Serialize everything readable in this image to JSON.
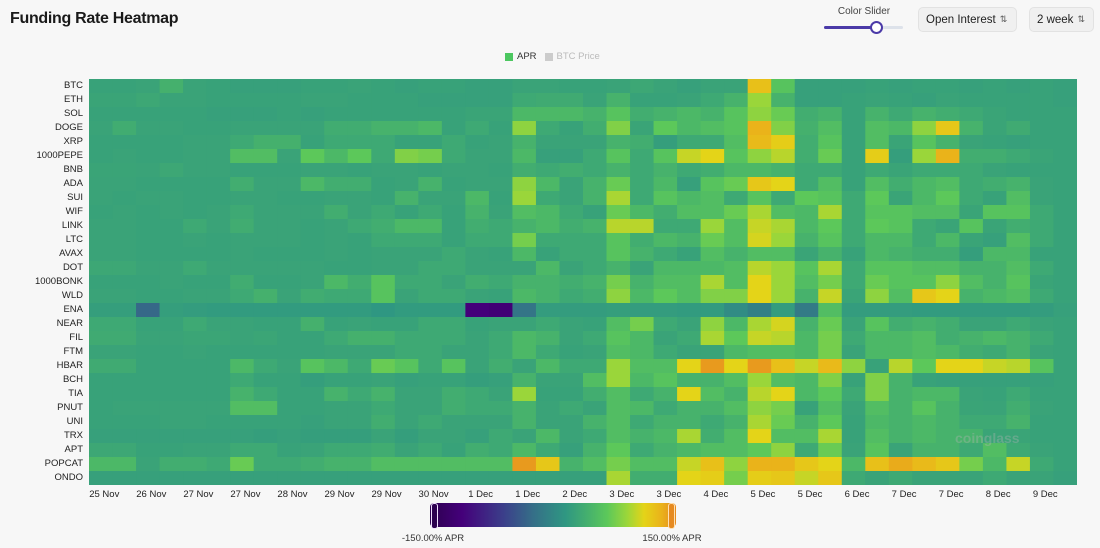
{
  "header": {
    "title": "Funding Rate Heatmap"
  },
  "controls": {
    "slider_label": "Color Slider",
    "slider_value": 0.66,
    "metric_select": "Open Interest",
    "range_select": "2 week"
  },
  "watermark": "coinglass",
  "colors": {
    "accent": "#4b3aa8",
    "apr_legend": "#4cc760",
    "btc_legend": "#cccccc"
  },
  "chart_data": {
    "type": "heatmap",
    "title": "Funding Rate Heatmap",
    "legend": [
      {
        "name": "APR",
        "active": true
      },
      {
        "name": "BTC Price",
        "active": false
      }
    ],
    "legend_placement": "top-center",
    "colorbar": {
      "min": -150,
      "max": 150,
      "min_label": "-150.00% APR",
      "max_label": "150.00% APR"
    },
    "x_tick_labels": [
      "25 Nov",
      "26 Nov",
      "27 Nov",
      "27 Nov",
      "28 Nov",
      "29 Nov",
      "29 Nov",
      "30 Nov",
      "1 Dec",
      "1 Dec",
      "2 Dec",
      "3 Dec",
      "3 Dec",
      "4 Dec",
      "5 Dec",
      "5 Dec",
      "6 Dec",
      "7 Dec",
      "7 Dec",
      "8 Dec",
      "9 Dec"
    ],
    "rows": [
      "BTC",
      "ETH",
      "SOL",
      "DOGE",
      "XRP",
      "1000PEPE",
      "BNB",
      "ADA",
      "SUI",
      "WIF",
      "LINK",
      "LTC",
      "AVAX",
      "DOT",
      "1000BONK",
      "WLD",
      "ENA",
      "NEAR",
      "FIL",
      "FTM",
      "HBAR",
      "BCH",
      "TIA",
      "PNUT",
      "UNI",
      "TRX",
      "APT",
      "POPCAT",
      "ONDO"
    ],
    "unit": "APR %",
    "values": [
      [
        12,
        12,
        14,
        28,
        14,
        12,
        10,
        10,
        10,
        12,
        12,
        14,
        12,
        10,
        12,
        12,
        10,
        10,
        14,
        14,
        12,
        12,
        14,
        18,
        14,
        10,
        14,
        14,
        115,
        45,
        10,
        10,
        10,
        12,
        10,
        12,
        12,
        10,
        12,
        10,
        12,
        10
      ],
      [
        15,
        15,
        18,
        14,
        14,
        12,
        12,
        12,
        12,
        14,
        14,
        12,
        12,
        12,
        10,
        10,
        10,
        10,
        20,
        22,
        22,
        14,
        30,
        12,
        12,
        14,
        20,
        30,
        75,
        30,
        10,
        10,
        12,
        14,
        12,
        10,
        14,
        12,
        12,
        12,
        12,
        10
      ],
      [
        12,
        12,
        12,
        12,
        12,
        10,
        10,
        10,
        12,
        10,
        12,
        12,
        12,
        12,
        12,
        12,
        15,
        15,
        35,
        35,
        35,
        30,
        45,
        25,
        30,
        35,
        30,
        45,
        70,
        55,
        25,
        30,
        12,
        30,
        20,
        30,
        25,
        20,
        15,
        12,
        12,
        12
      ],
      [
        14,
        24,
        14,
        14,
        12,
        12,
        14,
        14,
        14,
        14,
        24,
        24,
        30,
        30,
        35,
        12,
        20,
        12,
        70,
        20,
        12,
        25,
        65,
        15,
        50,
        35,
        40,
        45,
        125,
        65,
        28,
        40,
        12,
        40,
        35,
        70,
        110,
        30,
        15,
        22,
        12,
        12
      ],
      [
        12,
        12,
        12,
        12,
        14,
        14,
        20,
        28,
        28,
        12,
        20,
        20,
        20,
        12,
        12,
        20,
        12,
        14,
        30,
        14,
        14,
        14,
        30,
        25,
        8,
        20,
        20,
        40,
        120,
        105,
        25,
        45,
        12,
        40,
        15,
        45,
        30,
        14,
        12,
        10,
        12,
        12
      ],
      [
        12,
        14,
        12,
        12,
        14,
        14,
        40,
        40,
        14,
        50,
        35,
        50,
        20,
        65,
        60,
        20,
        14,
        14,
        35,
        10,
        10,
        20,
        45,
        20,
        45,
        90,
        100,
        45,
        70,
        85,
        25,
        55,
        12,
        105,
        8,
        75,
        125,
        25,
        25,
        20,
        15,
        12
      ],
      [
        15,
        15,
        14,
        18,
        14,
        14,
        12,
        12,
        12,
        14,
        14,
        12,
        14,
        14,
        12,
        14,
        14,
        12,
        25,
        20,
        25,
        20,
        30,
        20,
        30,
        20,
        25,
        35,
        35,
        30,
        20,
        20,
        12,
        20,
        15,
        20,
        20,
        20,
        14,
        12,
        12,
        12
      ],
      [
        14,
        14,
        12,
        12,
        12,
        12,
        25,
        14,
        14,
        35,
        25,
        25,
        12,
        14,
        30,
        12,
        14,
        14,
        70,
        35,
        14,
        30,
        55,
        20,
        35,
        10,
        45,
        55,
        110,
        100,
        20,
        40,
        12,
        40,
        25,
        35,
        40,
        20,
        25,
        30,
        14,
        12
      ],
      [
        14,
        12,
        14,
        14,
        12,
        12,
        14,
        14,
        12,
        12,
        14,
        14,
        12,
        30,
        14,
        14,
        35,
        12,
        75,
        20,
        14,
        30,
        80,
        20,
        45,
        35,
        40,
        20,
        45,
        20,
        50,
        45,
        20,
        50,
        15,
        35,
        50,
        20,
        12,
        40,
        14,
        12
      ],
      [
        12,
        14,
        12,
        14,
        12,
        14,
        20,
        14,
        14,
        14,
        25,
        14,
        20,
        12,
        20,
        12,
        30,
        14,
        40,
        35,
        20,
        12,
        55,
        35,
        25,
        40,
        40,
        55,
        80,
        40,
        35,
        80,
        20,
        45,
        45,
        40,
        40,
        15,
        45,
        45,
        20,
        12
      ],
      [
        14,
        14,
        12,
        12,
        20,
        14,
        24,
        14,
        14,
        12,
        14,
        20,
        25,
        35,
        35,
        12,
        25,
        20,
        30,
        35,
        25,
        30,
        85,
        85,
        20,
        20,
        75,
        40,
        90,
        80,
        35,
        50,
        20,
        50,
        45,
        20,
        15,
        45,
        15,
        25,
        20,
        12
      ],
      [
        14,
        14,
        12,
        12,
        14,
        12,
        14,
        14,
        14,
        12,
        14,
        12,
        20,
        20,
        20,
        12,
        20,
        20,
        60,
        20,
        20,
        20,
        45,
        25,
        35,
        30,
        55,
        40,
        95,
        75,
        30,
        45,
        20,
        35,
        35,
        20,
        35,
        15,
        10,
        40,
        20,
        12
      ],
      [
        14,
        14,
        12,
        12,
        12,
        12,
        14,
        12,
        12,
        12,
        14,
        12,
        14,
        14,
        14,
        20,
        14,
        12,
        35,
        12,
        20,
        20,
        45,
        30,
        20,
        12,
        40,
        30,
        40,
        40,
        15,
        30,
        12,
        35,
        30,
        25,
        25,
        8,
        35,
        35,
        12,
        12
      ],
      [
        18,
        18,
        14,
        14,
        20,
        14,
        14,
        14,
        14,
        14,
        12,
        12,
        14,
        14,
        20,
        20,
        14,
        14,
        14,
        35,
        14,
        20,
        30,
        14,
        35,
        35,
        35,
        40,
        85,
        75,
        45,
        80,
        20,
        45,
        45,
        40,
        40,
        30,
        30,
        40,
        20,
        12
      ],
      [
        12,
        12,
        12,
        14,
        12,
        12,
        24,
        12,
        12,
        14,
        35,
        25,
        45,
        20,
        20,
        14,
        25,
        20,
        30,
        30,
        25,
        30,
        60,
        30,
        40,
        40,
        80,
        40,
        100,
        75,
        40,
        60,
        20,
        55,
        45,
        45,
        70,
        40,
        30,
        45,
        15,
        12
      ],
      [
        14,
        14,
        12,
        12,
        14,
        14,
        20,
        28,
        14,
        24,
        20,
        20,
        45,
        14,
        20,
        20,
        14,
        12,
        35,
        30,
        20,
        25,
        70,
        35,
        50,
        40,
        65,
        65,
        100,
        75,
        30,
        90,
        15,
        70,
        40,
        110,
        100,
        30,
        35,
        40,
        20,
        12
      ],
      [
        8,
        8,
        -40,
        8,
        6,
        4,
        4,
        4,
        4,
        4,
        4,
        4,
        0,
        4,
        4,
        4,
        -110,
        -115,
        -30,
        6,
        6,
        6,
        8,
        6,
        6,
        4,
        4,
        -10,
        -20,
        6,
        -25,
        40,
        6,
        6,
        6,
        4,
        4,
        4,
        4,
        4,
        6,
        10
      ],
      [
        20,
        20,
        12,
        12,
        20,
        14,
        14,
        12,
        12,
        28,
        12,
        14,
        12,
        12,
        20,
        20,
        12,
        14,
        14,
        20,
        14,
        12,
        40,
        60,
        20,
        14,
        70,
        35,
        80,
        95,
        30,
        55,
        14,
        45,
        25,
        30,
        25,
        14,
        14,
        20,
        14,
        12
      ],
      [
        22,
        22,
        14,
        14,
        16,
        16,
        14,
        16,
        12,
        12,
        20,
        28,
        28,
        20,
        20,
        20,
        14,
        20,
        35,
        30,
        14,
        20,
        45,
        35,
        14,
        20,
        80,
        50,
        90,
        85,
        35,
        60,
        20,
        35,
        35,
        40,
        25,
        30,
        35,
        30,
        20,
        12
      ],
      [
        14,
        14,
        12,
        12,
        14,
        12,
        12,
        12,
        12,
        12,
        14,
        14,
        14,
        20,
        20,
        14,
        14,
        20,
        35,
        20,
        12,
        14,
        40,
        35,
        20,
        14,
        14,
        35,
        40,
        40,
        35,
        60,
        14,
        35,
        35,
        40,
        35,
        25,
        20,
        30,
        14,
        12
      ],
      [
        22,
        22,
        12,
        12,
        12,
        12,
        35,
        20,
        14,
        45,
        35,
        20,
        55,
        45,
        20,
        45,
        14,
        25,
        14,
        35,
        20,
        20,
        75,
        40,
        40,
        100,
        140,
        100,
        140,
        115,
        90,
        120,
        70,
        12,
        85,
        50,
        100,
        100,
        90,
        85,
        45,
        12
      ],
      [
        12,
        12,
        12,
        12,
        12,
        12,
        20,
        12,
        12,
        8,
        12,
        12,
        14,
        10,
        12,
        12,
        8,
        10,
        30,
        14,
        14,
        40,
        75,
        35,
        45,
        30,
        30,
        40,
        75,
        40,
        35,
        65,
        12,
        65,
        30,
        12,
        10,
        10,
        10,
        10,
        10,
        12
      ],
      [
        12,
        12,
        12,
        12,
        12,
        12,
        30,
        20,
        12,
        12,
        30,
        20,
        30,
        14,
        14,
        25,
        20,
        14,
        75,
        12,
        12,
        25,
        40,
        20,
        30,
        100,
        40,
        30,
        85,
        100,
        35,
        50,
        20,
        65,
        30,
        35,
        35,
        14,
        12,
        20,
        12,
        12
      ],
      [
        12,
        14,
        14,
        14,
        14,
        14,
        40,
        40,
        12,
        12,
        14,
        14,
        20,
        14,
        14,
        25,
        20,
        20,
        30,
        14,
        20,
        14,
        40,
        35,
        20,
        30,
        30,
        40,
        70,
        60,
        12,
        40,
        14,
        40,
        30,
        45,
        30,
        15,
        14,
        25,
        14,
        12
      ],
      [
        12,
        12,
        12,
        14,
        14,
        12,
        12,
        12,
        12,
        10,
        14,
        14,
        25,
        14,
        20,
        14,
        14,
        14,
        30,
        14,
        14,
        30,
        40,
        20,
        30,
        30,
        20,
        30,
        80,
        55,
        30,
        50,
        12,
        35,
        30,
        35,
        30,
        20,
        20,
        30,
        12,
        12
      ],
      [
        10,
        10,
        10,
        10,
        10,
        10,
        10,
        8,
        10,
        8,
        8,
        8,
        14,
        8,
        14,
        14,
        10,
        20,
        14,
        35,
        14,
        20,
        40,
        30,
        35,
        80,
        25,
        40,
        100,
        40,
        40,
        80,
        12,
        40,
        30,
        35,
        30,
        30,
        15,
        15,
        12,
        12
      ],
      [
        18,
        18,
        12,
        12,
        14,
        14,
        20,
        20,
        12,
        14,
        20,
        20,
        24,
        14,
        20,
        12,
        25,
        20,
        35,
        20,
        10,
        30,
        50,
        20,
        30,
        35,
        40,
        40,
        50,
        70,
        20,
        55,
        14,
        45,
        14,
        30,
        30,
        20,
        40,
        20,
        14,
        12
      ],
      [
        35,
        35,
        14,
        25,
        25,
        20,
        55,
        20,
        20,
        25,
        30,
        30,
        40,
        40,
        40,
        40,
        40,
        40,
        140,
        110,
        30,
        40,
        60,
        40,
        40,
        90,
        115,
        70,
        125,
        125,
        110,
        100,
        35,
        115,
        130,
        120,
        110,
        60,
        35,
        90,
        20,
        12
      ],
      [
        10,
        10,
        10,
        10,
        10,
        10,
        10,
        10,
        10,
        10,
        10,
        10,
        10,
        10,
        10,
        10,
        10,
        10,
        10,
        10,
        10,
        10,
        80,
        25,
        25,
        100,
        105,
        60,
        105,
        110,
        90,
        110,
        20,
        14,
        20,
        14,
        14,
        14,
        20,
        14,
        14,
        10
      ]
    ]
  }
}
